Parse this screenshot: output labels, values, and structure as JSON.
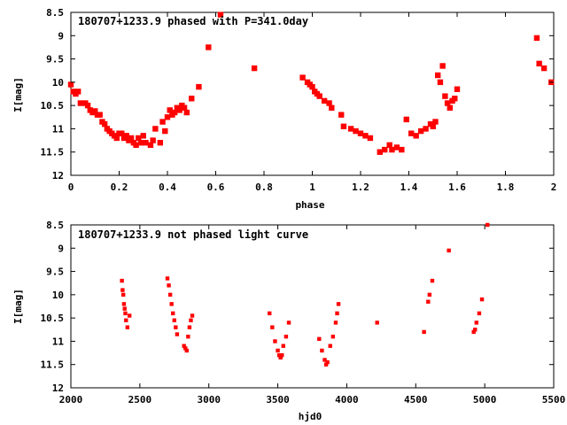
{
  "chart_data": [
    {
      "type": "scatter",
      "title": "180707+1233.9 phased with P=341.0day",
      "xlabel": "phase",
      "ylabel": "I[mag]",
      "xlim": [
        0,
        2
      ],
      "ylim": [
        12,
        8.5
      ],
      "y_inverted": true,
      "grid": false,
      "marker_color": "#ff0000",
      "xticks": [
        "0",
        "0.2",
        "0.4",
        "0.6",
        "0.8",
        "1",
        "1.2",
        "1.4",
        "1.6",
        "1.8",
        "2"
      ],
      "yticks": [
        "8.5",
        "9",
        "9.5",
        "10",
        "10.5",
        "11",
        "11.5",
        "12"
      ],
      "x": [
        0.0,
        0.01,
        0.02,
        0.03,
        0.04,
        0.06,
        0.07,
        0.08,
        0.09,
        0.1,
        0.11,
        0.12,
        0.13,
        0.14,
        0.15,
        0.16,
        0.17,
        0.18,
        0.19,
        0.2,
        0.21,
        0.22,
        0.23,
        0.24,
        0.25,
        0.26,
        0.27,
        0.28,
        0.29,
        0.3,
        0.31,
        0.33,
        0.34,
        0.35,
        0.37,
        0.38,
        0.39,
        0.4,
        0.41,
        0.42,
        0.43,
        0.44,
        0.45,
        0.46,
        0.47,
        0.48,
        0.5,
        0.53,
        0.57,
        0.62,
        0.76,
        0.96,
        0.98,
        0.99,
        1.0,
        1.01,
        1.02,
        1.03,
        1.05,
        1.07,
        1.08,
        1.12,
        1.13,
        1.16,
        1.18,
        1.2,
        1.22,
        1.24,
        1.28,
        1.3,
        1.32,
        1.33,
        1.35,
        1.37,
        1.39,
        1.41,
        1.43,
        1.45,
        1.47,
        1.49,
        1.5,
        1.51,
        1.52,
        1.53,
        1.54,
        1.55,
        1.56,
        1.57,
        1.58,
        1.59,
        1.6,
        1.93,
        1.94,
        1.96,
        1.99
      ],
      "y": [
        10.05,
        10.2,
        10.25,
        10.2,
        10.45,
        10.45,
        10.5,
        10.6,
        10.65,
        10.62,
        10.7,
        10.7,
        10.85,
        10.9,
        11.0,
        11.05,
        11.1,
        11.15,
        11.2,
        11.1,
        11.1,
        11.2,
        11.15,
        11.25,
        11.2,
        11.3,
        11.35,
        11.2,
        11.3,
        11.15,
        11.3,
        11.35,
        11.25,
        11.0,
        11.3,
        10.85,
        11.05,
        10.75,
        10.6,
        10.7,
        10.65,
        10.55,
        10.6,
        10.5,
        10.55,
        10.65,
        10.35,
        10.1,
        9.25,
        8.55,
        9.7,
        9.9,
        10.0,
        10.05,
        10.1,
        10.2,
        10.25,
        10.3,
        10.4,
        10.45,
        10.55,
        10.7,
        10.95,
        11.0,
        11.05,
        11.1,
        11.15,
        11.2,
        11.5,
        11.45,
        11.35,
        11.45,
        11.4,
        11.45,
        10.8,
        11.1,
        11.15,
        11.05,
        11.0,
        10.9,
        10.95,
        10.85,
        9.85,
        10.0,
        9.65,
        10.3,
        10.45,
        10.55,
        10.4,
        10.35,
        10.15,
        9.05,
        9.6,
        9.7,
        10.0
      ]
    },
    {
      "type": "scatter",
      "title": "180707+1233.9 not phased light curve",
      "xlabel": "hjd0",
      "ylabel": "I[mag]",
      "xlim": [
        2000,
        5500
      ],
      "ylim": [
        12,
        8.5
      ],
      "y_inverted": true,
      "grid": false,
      "marker_color": "#ff0000",
      "xticks": [
        "2000",
        "2500",
        "3000",
        "3500",
        "4000",
        "4500",
        "5000",
        "5500"
      ],
      "yticks": [
        "8.5",
        "9",
        "9.5",
        "10",
        "10.5",
        "11",
        "11.5",
        "12"
      ],
      "x": [
        2370,
        2375,
        2380,
        2385,
        2390,
        2395,
        2400,
        2410,
        2425,
        2700,
        2710,
        2720,
        2730,
        2740,
        2750,
        2760,
        2770,
        2820,
        2830,
        2840,
        2850,
        2860,
        2870,
        2880,
        3440,
        3460,
        3480,
        3500,
        3510,
        3520,
        3530,
        3540,
        3560,
        3580,
        3800,
        3820,
        3840,
        3850,
        3860,
        3880,
        3900,
        3920,
        3930,
        3940,
        4220,
        4560,
        4590,
        4600,
        4620,
        4740,
        4920,
        4930,
        4940,
        4960,
        4980,
        5020
      ],
      "y": [
        9.7,
        9.9,
        10.0,
        10.2,
        10.3,
        10.4,
        10.55,
        10.7,
        10.45,
        9.65,
        9.8,
        10.0,
        10.2,
        10.4,
        10.55,
        10.7,
        10.85,
        11.1,
        11.15,
        11.2,
        10.9,
        10.7,
        10.55,
        10.45,
        10.4,
        10.7,
        11.0,
        11.2,
        11.3,
        11.35,
        11.3,
        11.1,
        10.9,
        10.6,
        10.95,
        11.2,
        11.4,
        11.5,
        11.45,
        11.1,
        10.9,
        10.6,
        10.4,
        10.2,
        10.6,
        10.8,
        10.15,
        10.0,
        9.7,
        9.05,
        10.8,
        10.75,
        10.6,
        10.4,
        10.1,
        8.5
      ]
    }
  ]
}
